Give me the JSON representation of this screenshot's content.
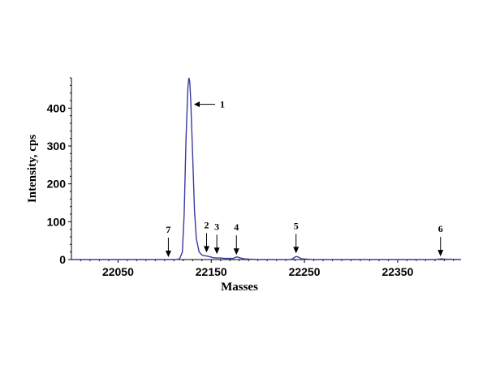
{
  "chart_data": {
    "type": "line",
    "xlabel": "Masses",
    "ylabel": "Intensity, cps",
    "xlim": [
      22000,
      22418
    ],
    "ylim": [
      0,
      480
    ],
    "xticks": [
      22050,
      22150,
      22250,
      22350
    ],
    "yticks": [
      0,
      100,
      200,
      300,
      400
    ],
    "grid": false,
    "line_color": "#3a3aa0",
    "series": [
      {
        "x": [
          22000,
          22100,
          22112,
          22116,
          22119,
          22121,
          22123,
          22125,
          22126,
          22127,
          22128,
          22130,
          22132,
          22134,
          22137,
          22140,
          22143,
          22146,
          22149,
          22152,
          22156,
          22160,
          22165,
          22170,
          22174,
          22176,
          22178,
          22180,
          22185,
          22190,
          22200,
          22220,
          22235,
          22238,
          22240,
          22242,
          22244,
          22247,
          22260,
          22300,
          22390,
          22394,
          22397,
          22400,
          22418
        ],
        "y": [
          0,
          0,
          0,
          2,
          20,
          120,
          320,
          455,
          480,
          470,
          420,
          280,
          130,
          55,
          20,
          12,
          10,
          9,
          7,
          5,
          4,
          4,
          3,
          3,
          3,
          6,
          7,
          5,
          2,
          1,
          0,
          0,
          0,
          3,
          7,
          8,
          6,
          2,
          0,
          0,
          0,
          1,
          2,
          1,
          0
        ]
      }
    ],
    "annotations": [
      {
        "label": "1",
        "x": 22128,
        "y": 410,
        "direction": "left"
      },
      {
        "label": "2",
        "x": 22145,
        "y": 12,
        "direction": "down"
      },
      {
        "label": "3",
        "x": 22156,
        "y": 8,
        "direction": "down"
      },
      {
        "label": "4",
        "x": 22177,
        "y": 6,
        "direction": "down"
      },
      {
        "label": "5",
        "x": 22241,
        "y": 10,
        "direction": "down"
      },
      {
        "label": "6",
        "x": 22396,
        "y": 2,
        "direction": "down"
      },
      {
        "label": "7",
        "x": 22104,
        "y": 0,
        "direction": "down"
      }
    ]
  }
}
